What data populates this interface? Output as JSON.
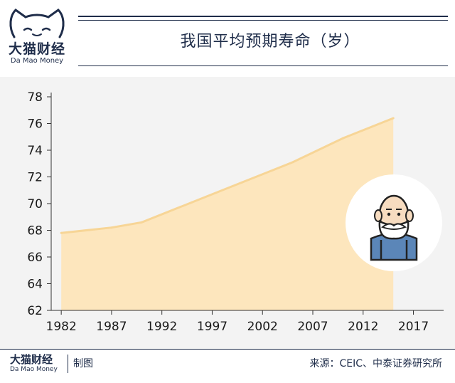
{
  "brand": {
    "name_cn": "大猫财经",
    "name_en": "Da Mao Money"
  },
  "footer": {
    "made_by": "制图",
    "source": "来源：CEIC、中泰证券研究所"
  },
  "colors": {
    "navy": "#1f2d4a",
    "area_fill": "#fde6bd",
    "area_line": "#f7d596",
    "panel_bg": "#f3f3f3",
    "avatar_circle": "#ffffff",
    "shirt": "#5b86b8"
  },
  "illustration": {
    "icon": "elderly-man-avatar-icon"
  },
  "chart_data": {
    "type": "area",
    "title": "我国平均预期寿命（岁）",
    "xlabel": "",
    "ylabel": "",
    "x": [
      1982,
      1987,
      1990,
      1995,
      2000,
      2005,
      2010,
      2015
    ],
    "y": [
      67.8,
      68.2,
      68.6,
      70.1,
      71.6,
      73.1,
      74.9,
      76.4
    ],
    "xlim": [
      1981,
      2020
    ],
    "ylim": [
      62,
      78
    ],
    "x_ticks": [
      "1982",
      "1987",
      "1992",
      "1997",
      "2002",
      "2007",
      "2012",
      "2017"
    ],
    "x_tick_values": [
      1982,
      1987,
      1992,
      1997,
      2002,
      2007,
      2012,
      2017
    ],
    "y_ticks": [
      "62",
      "64",
      "66",
      "68",
      "70",
      "72",
      "74",
      "76",
      "78"
    ],
    "y_tick_values": [
      62,
      64,
      66,
      68,
      70,
      72,
      74,
      76,
      78
    ],
    "grid": false,
    "legend": "none"
  }
}
